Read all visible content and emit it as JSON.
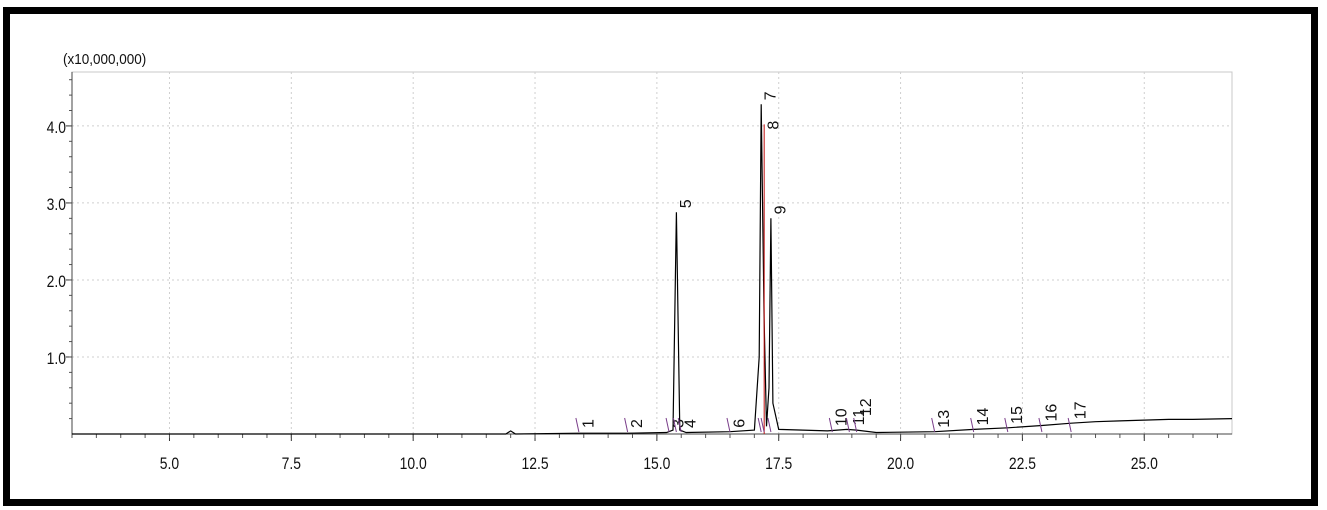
{
  "chart_data": {
    "type": "line",
    "title": "",
    "xlabel": "",
    "ylabel": "",
    "y_multiplier_label": "(x10,000,000)",
    "xlim": [
      3.0,
      26.8
    ],
    "ylim": [
      0,
      4.7
    ],
    "x_ticks": [
      5.0,
      7.5,
      10.0,
      12.5,
      15.0,
      17.5,
      20.0,
      22.5,
      25.0
    ],
    "x_tick_labels": [
      "5.0",
      "7.5",
      "10.0",
      "12.5",
      "15.0",
      "17.5",
      "20.0",
      "22.5",
      "25.0"
    ],
    "y_ticks": [
      1.0,
      2.0,
      3.0,
      4.0
    ],
    "y_tick_labels": [
      "1.0",
      "2.0",
      "3.0",
      "4.0"
    ],
    "grid": true,
    "series": [
      {
        "color": "#000000",
        "x": [
          3.0,
          11.9,
          12.0,
          12.1,
          13.4,
          14.4,
          15.2,
          15.33,
          15.4,
          15.47,
          15.6,
          16.5,
          17.0,
          17.1,
          17.14,
          17.2,
          17.25,
          17.3,
          17.34,
          17.38,
          17.5,
          18.5,
          18.9,
          19.1,
          19.5,
          20.7,
          21.5,
          22.2,
          22.9,
          23.5,
          24.0,
          24.5,
          25.0,
          25.5,
          26.0,
          26.8
        ],
        "values": [
          0.0,
          0.0,
          0.04,
          0.0,
          0.01,
          0.01,
          0.02,
          0.05,
          2.88,
          0.05,
          0.02,
          0.03,
          0.05,
          1.0,
          4.28,
          1.5,
          0.1,
          0.6,
          2.8,
          0.4,
          0.06,
          0.04,
          0.06,
          0.05,
          0.02,
          0.03,
          0.06,
          0.08,
          0.11,
          0.14,
          0.16,
          0.17,
          0.18,
          0.19,
          0.19,
          0.2
        ]
      }
    ],
    "peaks": [
      {
        "label": "1",
        "x": 13.4,
        "y": 0.01
      },
      {
        "label": "2",
        "x": 14.4,
        "y": 0.01
      },
      {
        "label": "3",
        "x": 15.25,
        "y": 0.02
      },
      {
        "label": "4",
        "x": 15.5,
        "y": 0.02
      },
      {
        "label": "5",
        "x": 15.4,
        "y": 2.88
      },
      {
        "label": "6",
        "x": 16.5,
        "y": 0.03
      },
      {
        "label": "7",
        "x": 17.14,
        "y": 4.28
      },
      {
        "label": "8",
        "x": 17.2,
        "y": 3.9
      },
      {
        "label": "9",
        "x": 17.34,
        "y": 2.8
      },
      {
        "label": "10",
        "x": 18.6,
        "y": 0.05
      },
      {
        "label": "11",
        "x": 18.95,
        "y": 0.06
      },
      {
        "label": "12",
        "x": 19.1,
        "y": 0.18
      },
      {
        "label": "13",
        "x": 20.7,
        "y": 0.03
      },
      {
        "label": "14",
        "x": 21.5,
        "y": 0.06
      },
      {
        "label": "15",
        "x": 22.2,
        "y": 0.08
      },
      {
        "label": "16",
        "x": 22.9,
        "y": 0.11
      },
      {
        "label": "17",
        "x": 23.5,
        "y": 0.14
      }
    ]
  }
}
